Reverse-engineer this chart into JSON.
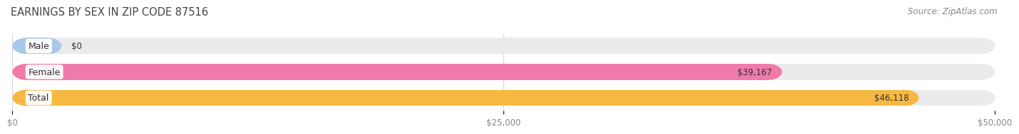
{
  "title": "EARNINGS BY SEX IN ZIP CODE 87516",
  "source": "Source: ZipAtlas.com",
  "categories": [
    "Male",
    "Female",
    "Total"
  ],
  "values": [
    0,
    39167,
    46118
  ],
  "bar_colors": [
    "#a8c8e8",
    "#f07aaa",
    "#f5b942"
  ],
  "bar_labels": [
    "$0",
    "$39,167",
    "$46,118"
  ],
  "xlim": [
    0,
    50000
  ],
  "xticks": [
    0,
    25000,
    50000
  ],
  "xticklabels": [
    "$0",
    "$25,000",
    "$50,000"
  ],
  "figure_background": "#ffffff",
  "bar_bg_color": "#ebebeb",
  "title_fontsize": 10.5,
  "source_fontsize": 8.5,
  "label_fontsize": 8.5,
  "tick_fontsize": 8.5,
  "bar_height": 0.62,
  "title_color": "#444444",
  "source_color": "#888888",
  "label_color": "#333333",
  "tick_color": "#888888",
  "category_fontsize": 9,
  "category_color": "#333333"
}
